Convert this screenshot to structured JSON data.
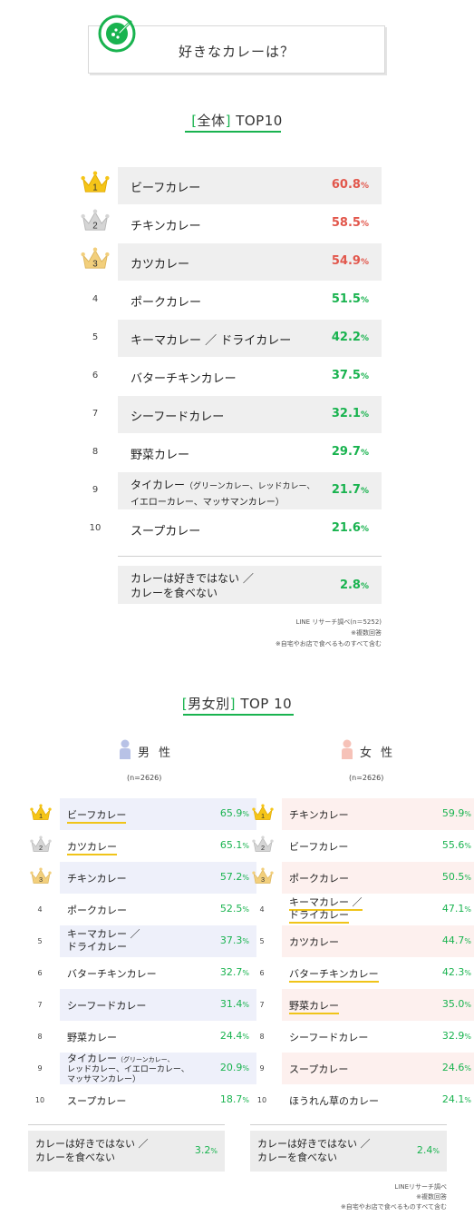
{
  "question": "好きなカレーは？",
  "overall": {
    "title_open": "[",
    "title_word": "全体",
    "title_close": "]",
    "title_rest": "TOP10",
    "items": [
      {
        "rank": "1",
        "label": "ビーフカレー",
        "value": "60.8",
        "pct": "%"
      },
      {
        "rank": "2",
        "label": "チキンカレー",
        "value": "58.5",
        "pct": "%"
      },
      {
        "rank": "3",
        "label": "カツカレー",
        "value": "54.9",
        "pct": "%"
      },
      {
        "rank": "4",
        "label": "ポークカレー",
        "value": "51.5",
        "pct": "%"
      },
      {
        "rank": "5",
        "label": "キーマカレー ／ ドライカレー",
        "value": "42.2",
        "pct": "%"
      },
      {
        "rank": "6",
        "label": "バターチキンカレー",
        "value": "37.5",
        "pct": "%"
      },
      {
        "rank": "7",
        "label": "シーフードカレー",
        "value": "32.1",
        "pct": "%"
      },
      {
        "rank": "8",
        "label": "野菜カレー",
        "value": "29.7",
        "pct": "%"
      },
      {
        "rank": "9",
        "label": "タイカレー",
        "label_small_1": "（グリーンカレー、レッドカレー、",
        "label_line2": "イエローカレー、マッサマンカレー）",
        "value": "21.7",
        "pct": "%"
      },
      {
        "rank": "10",
        "label": "スープカレー",
        "value": "21.6",
        "pct": "%"
      }
    ],
    "no_curry": {
      "line1": "カレーは好きではない ／",
      "line2": "カレーを食べない",
      "value": "2.8",
      "pct": "%"
    },
    "note1": "LINE リサーチ調べ(n＝5252)",
    "note2": "※複数回答",
    "note3": "※自宅やお店で食べるものすべて含む"
  },
  "gender": {
    "title_open": "[",
    "title_word": "男女別",
    "title_close": "]",
    "title_rest": "TOP 10",
    "male": {
      "heading": "男 性",
      "n": "(n=2626)",
      "items": [
        {
          "rank": "1",
          "label": "ビーフカレー",
          "value": "65.9",
          "pct": "%"
        },
        {
          "rank": "2",
          "label": "カツカレー",
          "value": "65.1",
          "pct": "%"
        },
        {
          "rank": "3",
          "label": "チキンカレー",
          "value": "57.2",
          "pct": "%"
        },
        {
          "rank": "4",
          "label": "ポークカレー",
          "value": "52.5",
          "pct": "%"
        },
        {
          "rank": "5",
          "label": "キーマカレー ／",
          "label_line2": "ドライカレー",
          "value": "37.3",
          "pct": "%"
        },
        {
          "rank": "6",
          "label": "バターチキンカレー",
          "value": "32.7",
          "pct": "%"
        },
        {
          "rank": "7",
          "label": "シーフードカレー",
          "value": "31.4",
          "pct": "%"
        },
        {
          "rank": "8",
          "label": "野菜カレー",
          "value": "24.4",
          "pct": "%"
        },
        {
          "rank": "9",
          "label": "タイカレー",
          "label_small_1": "（グリーンカレー、",
          "label_line2": "レッドカレー、イエローカレー、",
          "label_line3": "マッサマンカレー）",
          "value": "20.9",
          "pct": "%"
        },
        {
          "rank": "10",
          "label": "スープカレー",
          "value": "18.7",
          "pct": "%"
        }
      ],
      "no_curry": {
        "line1": "カレーは好きではない ／",
        "line2": "カレーを食べない",
        "value": "3.2",
        "pct": "%"
      }
    },
    "female": {
      "heading": "女 性",
      "n": "(n=2626)",
      "items": [
        {
          "rank": "1",
          "label": "チキンカレー",
          "value": "59.9",
          "pct": "%"
        },
        {
          "rank": "2",
          "label": "ビーフカレー",
          "value": "55.6",
          "pct": "%"
        },
        {
          "rank": "3",
          "label": "ポークカレー",
          "value": "50.5",
          "pct": "%"
        },
        {
          "rank": "4",
          "label": "キーマカレー ／",
          "label_line2": "ドライカレー",
          "value": "47.1",
          "pct": "%"
        },
        {
          "rank": "5",
          "label": "カツカレー",
          "value": "44.7",
          "pct": "%"
        },
        {
          "rank": "6",
          "label": "バターチキンカレー",
          "value": "42.3",
          "pct": "%"
        },
        {
          "rank": "7",
          "label": "野菜カレー",
          "value": "35.0",
          "pct": "%"
        },
        {
          "rank": "8",
          "label": "シーフードカレー",
          "value": "32.9",
          "pct": "%"
        },
        {
          "rank": "9",
          "label": "スープカレー",
          "value": "24.6",
          "pct": "%"
        },
        {
          "rank": "10",
          "label": "ほうれん草のカレー",
          "value": "24.1",
          "pct": "%"
        }
      ],
      "no_curry": {
        "line1": "カレーは好きではない ／",
        "line2": "カレーを食べない",
        "value": "2.4",
        "pct": "%"
      }
    },
    "note1": "LINEリサーチ調べ",
    "note2": "※複数回答",
    "note3": "※自宅やお店で食べるものすべて含む"
  },
  "chart_data": [
    {
      "type": "table",
      "title": "[全体] TOP10",
      "categories": [
        "ビーフカレー",
        "チキンカレー",
        "カツカレー",
        "ポークカレー",
        "キーマカレー ／ ドライカレー",
        "バターチキンカレー",
        "シーフードカレー",
        "野菜カレー",
        "タイカレー（グリーンカレー、レッドカレー、イエローカレー、マッサマンカレー）",
        "スープカレー",
        "カレーは好きではない ／ カレーを食べない"
      ],
      "values": [
        60.8,
        58.5,
        54.9,
        51.5,
        42.2,
        37.5,
        32.1,
        29.7,
        21.7,
        21.6,
        2.8
      ]
    },
    {
      "type": "table",
      "title": "男性",
      "categories": [
        "ビーフカレー",
        "カツカレー",
        "チキンカレー",
        "ポークカレー",
        "キーマカレー ／ ドライカレー",
        "バターチキンカレー",
        "シーフードカレー",
        "野菜カレー",
        "タイカレー（グリーンカレー、レッドカレー、イエローカレー、マッサマンカレー）",
        "スープカレー",
        "カレーは好きではない ／ カレーを食べない"
      ],
      "values": [
        65.9,
        65.1,
        57.2,
        52.5,
        37.3,
        32.7,
        31.4,
        24.4,
        20.9,
        18.7,
        3.2
      ]
    },
    {
      "type": "table",
      "title": "女性",
      "categories": [
        "チキンカレー",
        "ビーフカレー",
        "ポークカレー",
        "キーマカレー ／ ドライカレー",
        "カツカレー",
        "バターチキンカレー",
        "野菜カレー",
        "シーフードカレー",
        "スープカレー",
        "ほうれん草のカレー",
        "カレーは好きではない ／ カレーを食べない"
      ],
      "values": [
        59.9,
        55.6,
        50.5,
        47.1,
        44.7,
        42.3,
        35.0,
        32.9,
        24.6,
        24.1,
        2.4
      ]
    }
  ]
}
